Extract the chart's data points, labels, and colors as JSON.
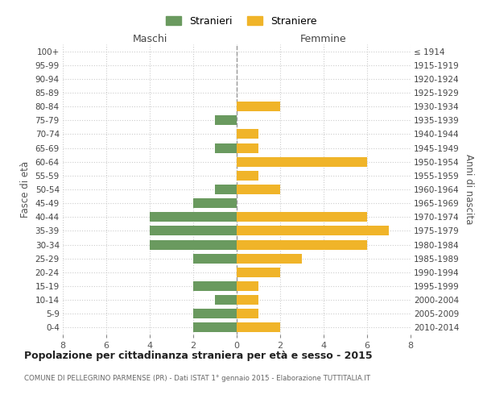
{
  "age_groups": [
    "100+",
    "95-99",
    "90-94",
    "85-89",
    "80-84",
    "75-79",
    "70-74",
    "65-69",
    "60-64",
    "55-59",
    "50-54",
    "45-49",
    "40-44",
    "35-39",
    "30-34",
    "25-29",
    "20-24",
    "15-19",
    "10-14",
    "5-9",
    "0-4"
  ],
  "birth_years": [
    "≤ 1914",
    "1915-1919",
    "1920-1924",
    "1925-1929",
    "1930-1934",
    "1935-1939",
    "1940-1944",
    "1945-1949",
    "1950-1954",
    "1955-1959",
    "1960-1964",
    "1965-1969",
    "1970-1974",
    "1975-1979",
    "1980-1984",
    "1985-1989",
    "1990-1994",
    "1995-1999",
    "2000-2004",
    "2005-2009",
    "2010-2014"
  ],
  "maschi": [
    0,
    0,
    0,
    0,
    0,
    1,
    0,
    1,
    0,
    0,
    1,
    2,
    4,
    4,
    4,
    2,
    0,
    2,
    1,
    2,
    2
  ],
  "femmine": [
    0,
    0,
    0,
    0,
    2,
    0,
    1,
    1,
    6,
    1,
    2,
    0,
    6,
    7,
    6,
    3,
    2,
    1,
    1,
    1,
    2
  ],
  "maschi_color": "#6a9a5f",
  "femmine_color": "#f0b429",
  "title": "Popolazione per cittadinanza straniera per età e sesso - 2015",
  "subtitle": "COMUNE DI PELLEGRINO PARMENSE (PR) - Dati ISTAT 1° gennaio 2015 - Elaborazione TUTTITALIA.IT",
  "ylabel_left": "Fasce di età",
  "ylabel_right": "Anni di nascita",
  "xlabel_maschi": "Maschi",
  "xlabel_femmine": "Femmine",
  "legend_maschi": "Stranieri",
  "legend_femmine": "Straniere",
  "xlim": 8,
  "background_color": "#ffffff",
  "grid_color": "#cccccc"
}
